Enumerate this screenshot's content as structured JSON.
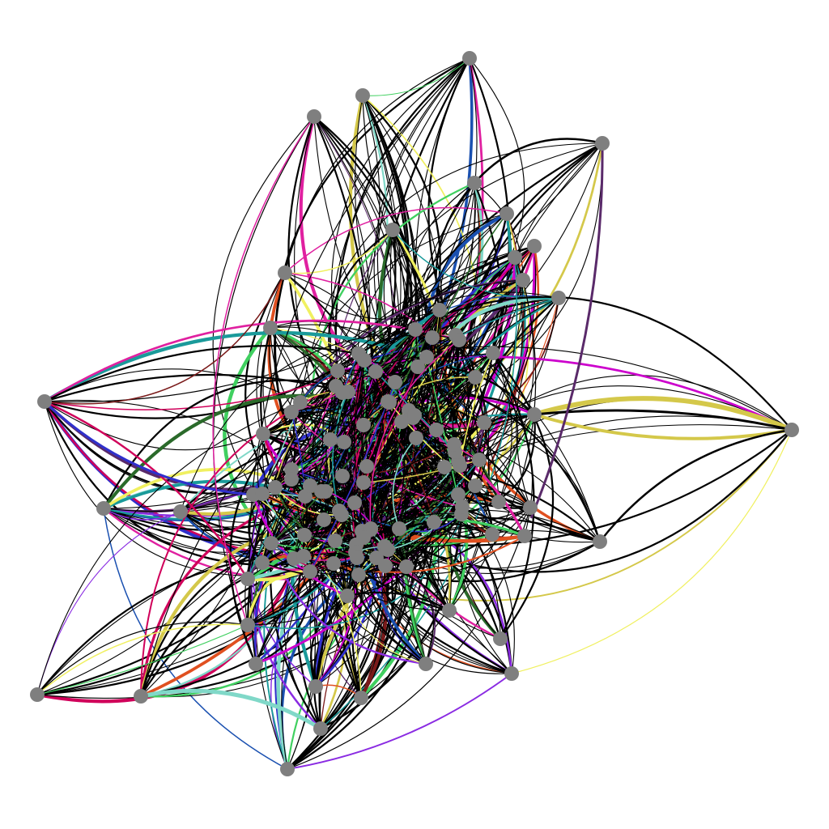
{
  "graph": {
    "node_color": "#7f7f7f",
    "edge_default_color": "#000000",
    "accent_edge_colors": [
      "#d4c84a",
      "#cc00cc",
      "#d0005a",
      "#3030cc",
      "#1a9a9a",
      "#40d060",
      "#8a2be2",
      "#f0f060",
      "#7a1a1a",
      "#5a2a6a",
      "#e05020",
      "#2a6a2a",
      "#80d8c8",
      "#e020a0",
      "#1a50b0"
    ],
    "node_count": 118,
    "edge_style": "curved-arcs"
  }
}
